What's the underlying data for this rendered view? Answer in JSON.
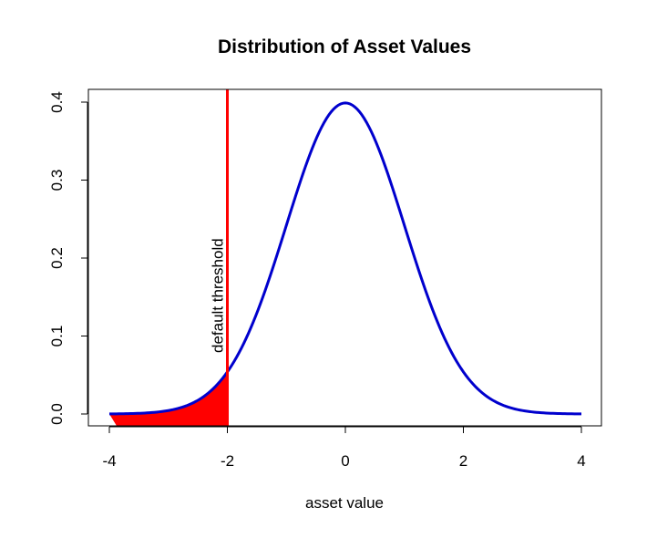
{
  "chart_data": {
    "type": "area",
    "title": "Distribution of Asset Values",
    "xlabel": "asset value",
    "ylabel": "",
    "xlim": [
      -4,
      4
    ],
    "ylim": [
      0,
      0.4
    ],
    "xticks": [
      -4,
      -2,
      0,
      2,
      4
    ],
    "yticks": [
      0,
      0.1,
      0.2,
      0.3,
      0.4
    ],
    "xtick_labels": [
      "-4",
      "-2",
      "0",
      "2",
      "4"
    ],
    "ytick_labels": [
      "0.0",
      "0.1",
      "0.2",
      "0.3",
      "0.4"
    ],
    "grid": false,
    "legend": "none",
    "series": [
      {
        "kind": "line",
        "x": [
          -4.0,
          -3.5,
          -3.0,
          -2.5,
          -2.0,
          -1.5,
          -1.0,
          -0.5,
          0.0,
          0.5,
          1.0,
          1.5,
          2.0,
          2.5,
          3.0,
          3.5,
          4.0
        ],
        "y": [
          0.0001,
          0.0009,
          0.0044,
          0.0175,
          0.054,
          0.1295,
          0.242,
          0.3521,
          0.3989,
          0.3521,
          0.242,
          0.1295,
          0.054,
          0.0175,
          0.0044,
          0.0009,
          0.0001
        ],
        "color": "#0000CD"
      }
    ],
    "shaded_region": {
      "from": -4,
      "to": -2,
      "color": "#FF0000"
    },
    "threshold": {
      "x": -2,
      "color": "#FF0000",
      "label": "default threshold"
    }
  }
}
